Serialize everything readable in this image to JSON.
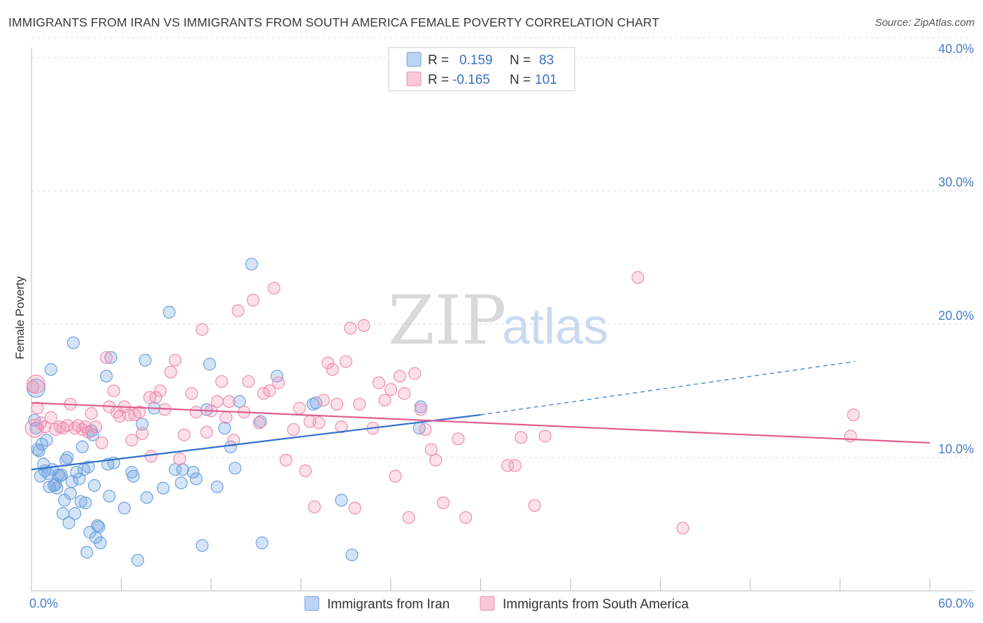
{
  "title": "IMMIGRANTS FROM IRAN VS IMMIGRANTS FROM SOUTH AMERICA FEMALE POVERTY CORRELATION CHART",
  "source": "Source: ZipAtlas.com",
  "watermark": {
    "zip": "ZIP",
    "atlas": "atlas"
  },
  "legend": {
    "r_label": "R =",
    "n_label": "N =",
    "rows": [
      {
        "r": "0.159",
        "n": "83",
        "color": "#6fa3e0"
      },
      {
        "r": "-0.165",
        "n": "101",
        "color": "#ef8fb0"
      }
    ]
  },
  "chart_data": {
    "type": "scatter",
    "xlabel": "",
    "ylabel": "Female Poverty",
    "xlim": [
      0,
      60
    ],
    "ylim": [
      0,
      42
    ],
    "x_ticks": [
      {
        "value": 0,
        "label": "0.0%"
      },
      {
        "value": 60,
        "label": "60.0%"
      }
    ],
    "y_ticks": [
      {
        "value": 10,
        "label": "10.0%"
      },
      {
        "value": 20,
        "label": "20.0%"
      },
      {
        "value": 30,
        "label": "30.0%"
      },
      {
        "value": 40,
        "label": "40.0%"
      }
    ],
    "grid": "horizontal dashed",
    "legend_position": "top-center",
    "series": [
      {
        "name": "Immigrants from Iran",
        "color": "#6fa3e0",
        "trend": {
          "x0": 0,
          "y0": 9.1,
          "x1": 30,
          "y1": 13.2,
          "dashed_to_x": 55,
          "dashed_to_y": 17.2
        },
        "points": [
          [
            0.3,
            15.2
          ],
          [
            0.2,
            12.8
          ],
          [
            0.3,
            12.2
          ],
          [
            0.4,
            10.6
          ],
          [
            0.5,
            10.5
          ],
          [
            0.6,
            8.6
          ],
          [
            0.7,
            11.0
          ],
          [
            0.8,
            9.5
          ],
          [
            0.9,
            9.0
          ],
          [
            1.0,
            11.3
          ],
          [
            1.1,
            8.8
          ],
          [
            1.2,
            7.8
          ],
          [
            1.3,
            16.6
          ],
          [
            1.4,
            9.1
          ],
          [
            1.5,
            7.9
          ],
          [
            1.6,
            8.0
          ],
          [
            1.7,
            7.7
          ],
          [
            1.8,
            8.7
          ],
          [
            1.9,
            8.6
          ],
          [
            2.0,
            8.7
          ],
          [
            2.1,
            5.8
          ],
          [
            2.2,
            6.8
          ],
          [
            2.3,
            9.8
          ],
          [
            2.4,
            10.0
          ],
          [
            2.5,
            5.1
          ],
          [
            2.6,
            7.3
          ],
          [
            2.7,
            8.2
          ],
          [
            2.8,
            18.6
          ],
          [
            2.9,
            5.8
          ],
          [
            3.0,
            8.9
          ],
          [
            3.2,
            8.4
          ],
          [
            3.3,
            6.7
          ],
          [
            3.4,
            10.8
          ],
          [
            3.5,
            9.1
          ],
          [
            3.6,
            6.6
          ],
          [
            3.7,
            2.9
          ],
          [
            3.8,
            9.3
          ],
          [
            3.9,
            4.4
          ],
          [
            4.0,
            12.0
          ],
          [
            4.1,
            11.7
          ],
          [
            4.2,
            7.9
          ],
          [
            4.3,
            4.0
          ],
          [
            4.4,
            4.9
          ],
          [
            4.5,
            4.8
          ],
          [
            4.6,
            3.6
          ],
          [
            5.0,
            16.1
          ],
          [
            5.1,
            9.5
          ],
          [
            5.2,
            7.1
          ],
          [
            5.3,
            17.5
          ],
          [
            5.5,
            9.6
          ],
          [
            6.2,
            6.2
          ],
          [
            6.7,
            8.9
          ],
          [
            6.8,
            8.6
          ],
          [
            7.1,
            2.3
          ],
          [
            7.4,
            12.5
          ],
          [
            7.6,
            17.3
          ],
          [
            7.7,
            7.0
          ],
          [
            8.2,
            13.7
          ],
          [
            8.8,
            7.7
          ],
          [
            9.2,
            20.9
          ],
          [
            9.6,
            9.1
          ],
          [
            10.0,
            8.1
          ],
          [
            10.1,
            9.1
          ],
          [
            10.8,
            8.9
          ],
          [
            11.0,
            8.4
          ],
          [
            11.4,
            3.4
          ],
          [
            11.7,
            13.6
          ],
          [
            11.9,
            17.0
          ],
          [
            12.4,
            7.8
          ],
          [
            12.9,
            12.2
          ],
          [
            13.3,
            10.8
          ],
          [
            13.6,
            9.2
          ],
          [
            13.9,
            14.2
          ],
          [
            14.7,
            24.5
          ],
          [
            15.3,
            12.7
          ],
          [
            15.4,
            3.6
          ],
          [
            16.4,
            16.1
          ],
          [
            18.8,
            14.0
          ],
          [
            19.0,
            14.1
          ],
          [
            20.7,
            6.8
          ],
          [
            21.4,
            2.7
          ],
          [
            25.9,
            12.2
          ],
          [
            26.0,
            13.8
          ]
        ]
      },
      {
        "name": "Immigrants from South America",
        "color": "#ef8fb0",
        "trend": {
          "x0": 0,
          "y0": 14.1,
          "x1": 60,
          "y1": 11.1
        },
        "points": [
          [
            0.1,
            15.3
          ],
          [
            0.4,
            13.7
          ],
          [
            0.6,
            12.6
          ],
          [
            0.9,
            12.3
          ],
          [
            1.3,
            13.0
          ],
          [
            1.6,
            12.1
          ],
          [
            1.9,
            12.3
          ],
          [
            2.1,
            12.2
          ],
          [
            2.4,
            12.4
          ],
          [
            2.6,
            14.0
          ],
          [
            2.9,
            12.2
          ],
          [
            3.1,
            12.4
          ],
          [
            3.4,
            12.1
          ],
          [
            3.6,
            12.3
          ],
          [
            3.8,
            11.9
          ],
          [
            4.0,
            13.3
          ],
          [
            4.3,
            12.3
          ],
          [
            4.7,
            11.1
          ],
          [
            5.0,
            17.5
          ],
          [
            5.2,
            13.8
          ],
          [
            5.5,
            15.0
          ],
          [
            5.7,
            13.4
          ],
          [
            5.9,
            13.1
          ],
          [
            6.2,
            13.8
          ],
          [
            6.5,
            13.2
          ],
          [
            6.7,
            11.3
          ],
          [
            6.9,
            13.2
          ],
          [
            7.2,
            13.4
          ],
          [
            7.4,
            11.8
          ],
          [
            7.9,
            14.5
          ],
          [
            8.0,
            10.1
          ],
          [
            8.3,
            14.5
          ],
          [
            8.6,
            15.0
          ],
          [
            8.9,
            13.6
          ],
          [
            9.3,
            16.4
          ],
          [
            9.6,
            17.3
          ],
          [
            9.9,
            9.9
          ],
          [
            10.2,
            11.7
          ],
          [
            10.7,
            14.8
          ],
          [
            11.0,
            13.4
          ],
          [
            11.4,
            19.6
          ],
          [
            11.7,
            11.9
          ],
          [
            12.0,
            13.5
          ],
          [
            12.4,
            14.2
          ],
          [
            12.7,
            15.7
          ],
          [
            13.0,
            13.0
          ],
          [
            13.2,
            14.2
          ],
          [
            13.5,
            11.3
          ],
          [
            13.8,
            21.0
          ],
          [
            14.2,
            13.4
          ],
          [
            14.5,
            15.7
          ],
          [
            14.8,
            21.8
          ],
          [
            15.2,
            12.6
          ],
          [
            15.5,
            14.8
          ],
          [
            15.9,
            15.0
          ],
          [
            16.2,
            22.7
          ],
          [
            16.5,
            15.6
          ],
          [
            17.0,
            9.8
          ],
          [
            17.5,
            12.1
          ],
          [
            17.9,
            13.7
          ],
          [
            18.3,
            9.0
          ],
          [
            18.6,
            12.7
          ],
          [
            18.9,
            6.3
          ],
          [
            19.2,
            12.6
          ],
          [
            19.5,
            14.3
          ],
          [
            19.8,
            17.1
          ],
          [
            20.1,
            16.6
          ],
          [
            20.4,
            14.0
          ],
          [
            20.7,
            12.3
          ],
          [
            21.0,
            17.2
          ],
          [
            21.3,
            19.7
          ],
          [
            21.6,
            6.2
          ],
          [
            21.9,
            14.0
          ],
          [
            22.2,
            19.9
          ],
          [
            22.8,
            12.2
          ],
          [
            23.2,
            15.6
          ],
          [
            23.6,
            14.3
          ],
          [
            24.0,
            15.1
          ],
          [
            24.3,
            8.6
          ],
          [
            24.6,
            16.1
          ],
          [
            24.9,
            14.8
          ],
          [
            25.2,
            5.5
          ],
          [
            25.6,
            16.3
          ],
          [
            26.0,
            13.6
          ],
          [
            26.3,
            12.1
          ],
          [
            26.7,
            10.6
          ],
          [
            27.0,
            9.8
          ],
          [
            27.5,
            6.6
          ],
          [
            28.5,
            11.4
          ],
          [
            29.0,
            5.5
          ],
          [
            31.8,
            9.4
          ],
          [
            32.3,
            9.4
          ],
          [
            32.7,
            11.5
          ],
          [
            33.6,
            6.4
          ],
          [
            34.3,
            11.6
          ],
          [
            40.5,
            23.5
          ],
          [
            43.5,
            4.7
          ],
          [
            54.7,
            11.6
          ],
          [
            54.9,
            13.2
          ],
          [
            0.2,
            12.2
          ],
          [
            0.3,
            15.5
          ]
        ]
      }
    ]
  }
}
